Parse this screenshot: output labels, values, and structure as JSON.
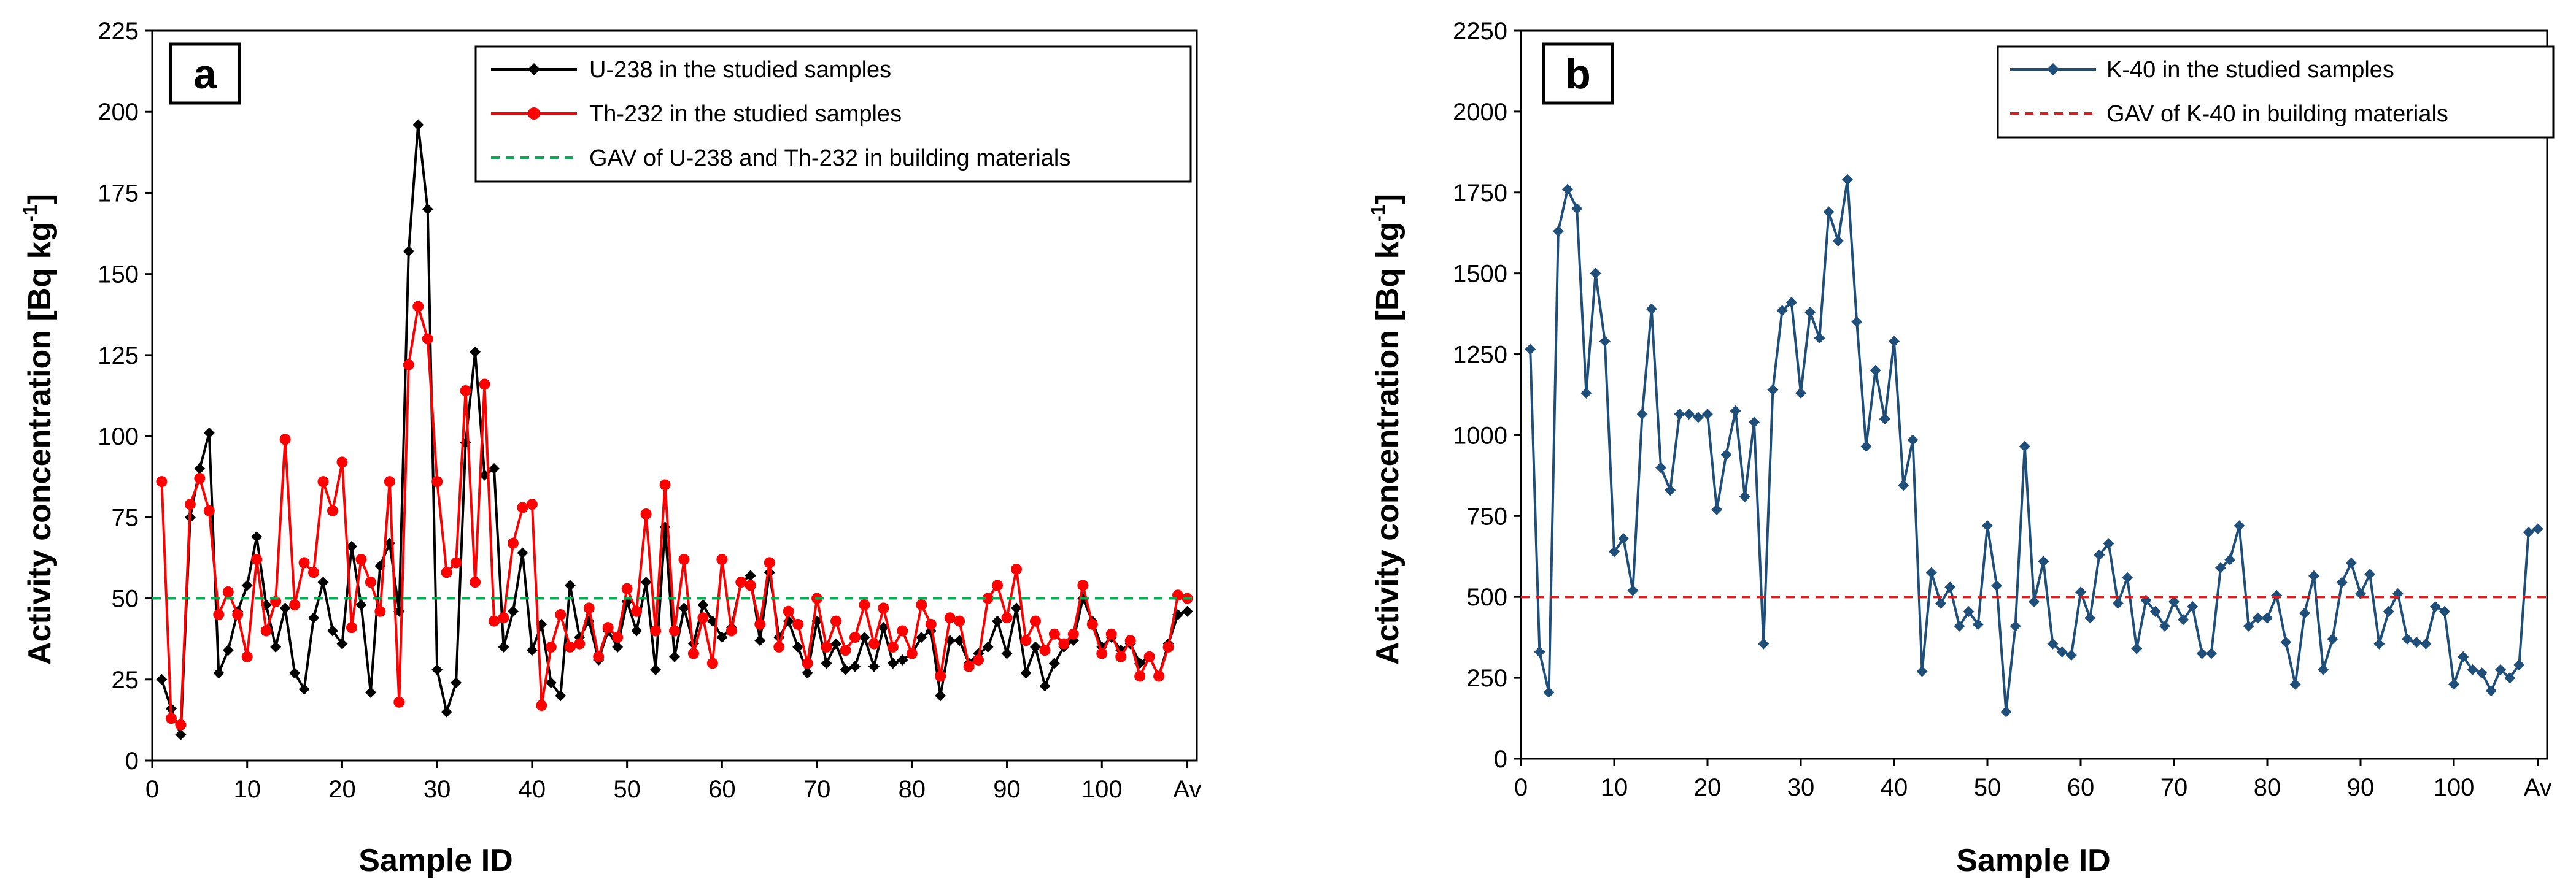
{
  "figure": {
    "panels": [
      "a",
      "b"
    ]
  },
  "chart_data": [
    {
      "panel_label": "a",
      "type": "line",
      "title": "",
      "xlabel": "Sample ID",
      "ylabel": "Activity concentration [Bq kg",
      "ylabel_sup": "-1",
      "ylabel_end": "]",
      "xlim": [
        0,
        110
      ],
      "ylim": [
        0,
        225
      ],
      "xticks": [
        "0",
        "10",
        "20",
        "30",
        "40",
        "50",
        "60",
        "70",
        "80",
        "90",
        "100",
        "Av"
      ],
      "xtick_values": [
        0,
        10,
        20,
        30,
        40,
        50,
        60,
        70,
        80,
        90,
        100,
        109
      ],
      "yticks": [
        0,
        25,
        50,
        75,
        100,
        125,
        150,
        175,
        200,
        225
      ],
      "legend_position": "top-right",
      "series": [
        {
          "name": "U-238 in the studied samples",
          "color": "#000000",
          "marker": "diamond",
          "x": [
            1,
            2,
            3,
            4,
            5,
            6,
            7,
            8,
            9,
            10,
            11,
            12,
            13,
            14,
            15,
            16,
            17,
            18,
            19,
            20,
            21,
            22,
            23,
            24,
            25,
            26,
            27,
            28,
            29,
            30,
            31,
            32,
            33,
            34,
            35,
            36,
            37,
            38,
            39,
            40,
            41,
            42,
            43,
            44,
            45,
            46,
            47,
            48,
            49,
            50,
            51,
            52,
            53,
            54,
            55,
            56,
            57,
            58,
            59,
            60,
            61,
            62,
            63,
            64,
            65,
            66,
            67,
            68,
            69,
            70,
            71,
            72,
            73,
            74,
            75,
            76,
            77,
            78,
            79,
            80,
            81,
            82,
            83,
            84,
            85,
            86,
            87,
            88,
            89,
            90,
            91,
            92,
            93,
            94,
            95,
            96,
            97,
            98,
            99,
            100,
            101,
            102,
            103,
            104,
            105,
            106,
            107,
            108,
            109
          ],
          "values": [
            25,
            16,
            8,
            75,
            90,
            101,
            27,
            34,
            46,
            54,
            69,
            48,
            35,
            47,
            27,
            22,
            44,
            55,
            40,
            36,
            66,
            48,
            21,
            60,
            67,
            46,
            157,
            196,
            170,
            28,
            15,
            24,
            98,
            126,
            88,
            90,
            35,
            46,
            64,
            34,
            42,
            24,
            20,
            54,
            38,
            43,
            31,
            40,
            35,
            49,
            40,
            55,
            28,
            72,
            32,
            47,
            36,
            48,
            43,
            38,
            41,
            55,
            57,
            37,
            58,
            38,
            43,
            35,
            27,
            43,
            30,
            36,
            28,
            29,
            38,
            29,
            41,
            30,
            31,
            33,
            38,
            40,
            20,
            37,
            37,
            30,
            33,
            35,
            43,
            33,
            47,
            27,
            35,
            23,
            30,
            35,
            37,
            50,
            43,
            35,
            38,
            34,
            36,
            30,
            32,
            26,
            36,
            45,
            46
          ]
        },
        {
          "name": "Th-232 in the studied samples",
          "color": "#ff0000",
          "marker": "circle",
          "x": [
            1,
            2,
            3,
            4,
            5,
            6,
            7,
            8,
            9,
            10,
            11,
            12,
            13,
            14,
            15,
            16,
            17,
            18,
            19,
            20,
            21,
            22,
            23,
            24,
            25,
            26,
            27,
            28,
            29,
            30,
            31,
            32,
            33,
            34,
            35,
            36,
            37,
            38,
            39,
            40,
            41,
            42,
            43,
            44,
            45,
            46,
            47,
            48,
            49,
            50,
            51,
            52,
            53,
            54,
            55,
            56,
            57,
            58,
            59,
            60,
            61,
            62,
            63,
            64,
            65,
            66,
            67,
            68,
            69,
            70,
            71,
            72,
            73,
            74,
            75,
            76,
            77,
            78,
            79,
            80,
            81,
            82,
            83,
            84,
            85,
            86,
            87,
            88,
            89,
            90,
            91,
            92,
            93,
            94,
            95,
            96,
            97,
            98,
            99,
            100,
            101,
            102,
            103,
            104,
            105,
            106,
            107,
            108,
            109
          ],
          "values": [
            86,
            13,
            11,
            79,
            87,
            77,
            45,
            52,
            45,
            32,
            62,
            40,
            49,
            99,
            48,
            61,
            58,
            86,
            77,
            92,
            41,
            62,
            55,
            46,
            86,
            18,
            122,
            140,
            130,
            86,
            58,
            61,
            114,
            55,
            116,
            43,
            44,
            67,
            78,
            79,
            17,
            35,
            45,
            35,
            36,
            47,
            32,
            41,
            38,
            53,
            46,
            76,
            40,
            85,
            40,
            62,
            33,
            44,
            30,
            62,
            40,
            55,
            54,
            42,
            61,
            35,
            46,
            42,
            30,
            50,
            35,
            43,
            34,
            38,
            48,
            36,
            47,
            35,
            40,
            33,
            48,
            42,
            26,
            44,
            43,
            29,
            31,
            50,
            54,
            44,
            59,
            37,
            43,
            34,
            39,
            36,
            39,
            54,
            42,
            33,
            39,
            32,
            37,
            26,
            32,
            26,
            35,
            51,
            50
          ]
        },
        {
          "name": "GAV of U-238 and Th-232 in building materials",
          "color": "#00b050",
          "style": "dashed",
          "constant": 50
        }
      ]
    },
    {
      "panel_label": "b",
      "type": "line",
      "title": "",
      "xlabel": "Sample ID",
      "ylabel": "Activity concentration [Bq  kg",
      "ylabel_sup": "-1",
      "ylabel_end": "]",
      "xlim": [
        0,
        110
      ],
      "ylim": [
        0,
        2250
      ],
      "xticks": [
        "0",
        "10",
        "20",
        "30",
        "40",
        "50",
        "60",
        "70",
        "80",
        "90",
        "100",
        "Av"
      ],
      "xtick_values": [
        0,
        10,
        20,
        30,
        40,
        50,
        60,
        70,
        80,
        90,
        100,
        109
      ],
      "yticks": [
        0,
        250,
        500,
        750,
        1000,
        1250,
        1500,
        1750,
        2000,
        2250
      ],
      "legend_position": "top-right",
      "series": [
        {
          "name": "K-40 in the studied samples",
          "color": "#1f4e79",
          "marker": "diamond",
          "x": [
            1,
            2,
            3,
            4,
            5,
            6,
            7,
            8,
            9,
            10,
            11,
            12,
            13,
            14,
            15,
            16,
            17,
            18,
            19,
            20,
            21,
            22,
            23,
            24,
            25,
            26,
            27,
            28,
            29,
            30,
            31,
            32,
            33,
            34,
            35,
            36,
            37,
            38,
            39,
            40,
            41,
            42,
            43,
            44,
            45,
            46,
            47,
            48,
            49,
            50,
            51,
            52,
            53,
            54,
            55,
            56,
            57,
            58,
            59,
            60,
            61,
            62,
            63,
            64,
            65,
            66,
            67,
            68,
            69,
            70,
            71,
            72,
            73,
            74,
            75,
            76,
            77,
            78,
            79,
            80,
            81,
            82,
            83,
            84,
            85,
            86,
            87,
            88,
            89,
            90,
            91,
            92,
            93,
            94,
            95,
            96,
            97,
            98,
            99,
            100,
            101,
            102,
            103,
            104,
            105,
            106,
            107,
            108,
            109
          ],
          "values": [
            1265,
            330,
            205,
            1630,
            1760,
            1700,
            1130,
            1500,
            1290,
            640,
            680,
            520,
            1065,
            1390,
            900,
            830,
            1065,
            1065,
            1055,
            1065,
            770,
            940,
            1075,
            810,
            1040,
            355,
            1140,
            1385,
            1410,
            1130,
            1380,
            1300,
            1690,
            1600,
            1790,
            1350,
            965,
            1200,
            1050,
            1290,
            845,
            985,
            270,
            575,
            480,
            530,
            410,
            455,
            415,
            720,
            535,
            145,
            410,
            965,
            485,
            610,
            355,
            330,
            320,
            515,
            435,
            630,
            665,
            480,
            560,
            340,
            490,
            455,
            410,
            485,
            430,
            470,
            325,
            325,
            590,
            615,
            720,
            410,
            435,
            435,
            505,
            360,
            230,
            450,
            565,
            275,
            370,
            545,
            605,
            510,
            570,
            355,
            455,
            510,
            370,
            360,
            355,
            470,
            455,
            230,
            315,
            275,
            265,
            210,
            275,
            250,
            290,
            700,
            710
          ]
        },
        {
          "name": "GAV of K-40 in building materials",
          "color": "#e31a1c",
          "style": "dashed",
          "constant": 500
        }
      ]
    }
  ]
}
